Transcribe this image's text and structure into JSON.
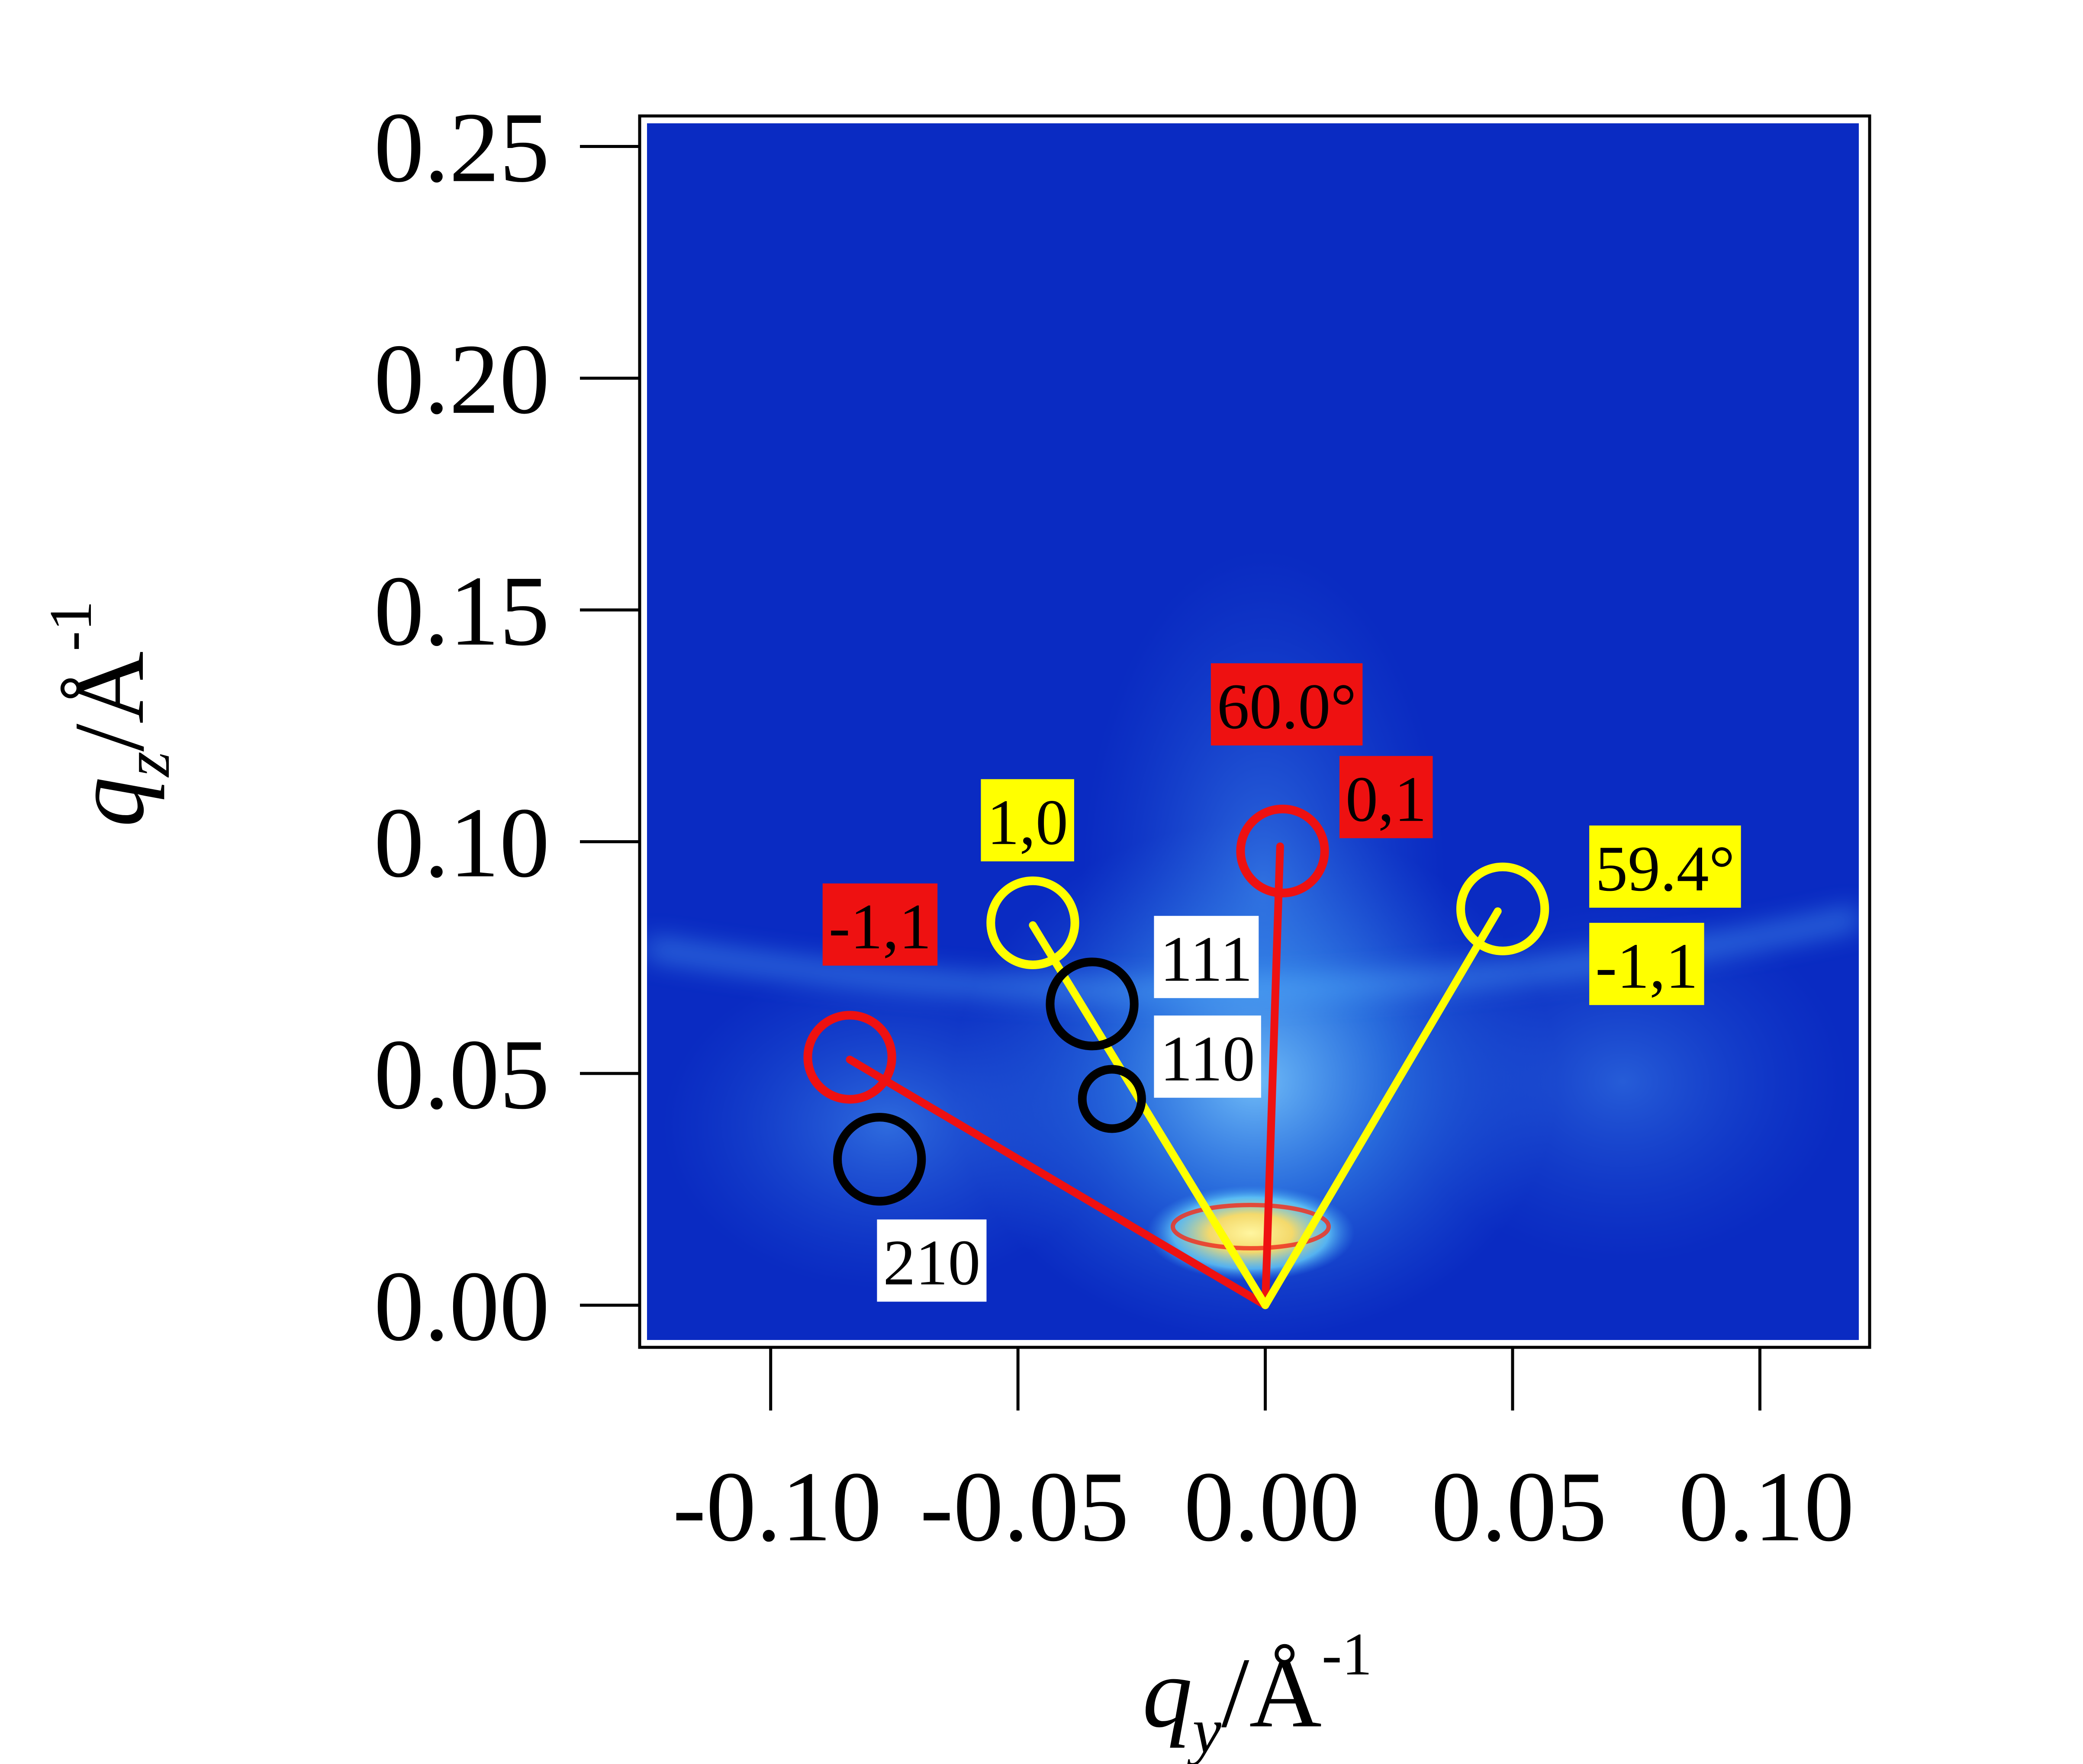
{
  "chart_data": {
    "type": "heatmap",
    "colors": {
      "background": "#0a2bc2",
      "glow": "#4fb2ff",
      "hot": "#ffe066",
      "red": "#ee1111",
      "yellow": "#ffff00",
      "black": "#000000",
      "white": "#ffffff"
    },
    "xaxis": {
      "label_main": "q",
      "label_sub": "y",
      "label_unit": "/Å",
      "label_exp": "-1",
      "range": [
        -0.125,
        0.12
      ],
      "ticks": [
        -0.1,
        -0.05,
        0.0,
        0.05,
        0.1
      ],
      "tick_labels": [
        "-0.10",
        "-0.05",
        "0.00",
        "0.05",
        "0.10"
      ]
    },
    "yaxis": {
      "label_main": "q",
      "label_sub": "z",
      "label_unit": "/Å",
      "label_exp": "-1",
      "range": [
        -0.0075,
        0.255
      ],
      "ticks": [
        0.0,
        0.05,
        0.1,
        0.15,
        0.2,
        0.25
      ],
      "tick_labels": [
        "0.00",
        "0.05",
        "0.10",
        "0.15",
        "0.20",
        "0.25"
      ]
    },
    "origin": [
      0.0,
      0.0
    ],
    "lines": [
      {
        "name": "red-line-0-1",
        "color": "red",
        "to": [
          0.003,
          0.099
        ]
      },
      {
        "name": "red-line-minus1-1",
        "color": "red",
        "to": [
          -0.084,
          0.053
        ]
      },
      {
        "name": "yellow-line-1-0",
        "color": "yellow",
        "to": [
          -0.047,
          0.082
        ]
      },
      {
        "name": "yellow-line-minus1-1",
        "color": "yellow",
        "to": [
          0.047,
          0.085
        ]
      }
    ],
    "circles": [
      {
        "name": "red-circle-0-1",
        "color": "red",
        "center": [
          0.0035,
          0.098
        ],
        "r": 0.0085
      },
      {
        "name": "red-circle-minus1-1",
        "color": "red",
        "center": [
          -0.084,
          0.0535
        ],
        "r": 0.0085
      },
      {
        "name": "yellow-circle-1-0",
        "color": "yellow",
        "center": [
          -0.047,
          0.0825
        ],
        "r": 0.0085
      },
      {
        "name": "yellow-circle-minus1-1",
        "color": "yellow",
        "center": [
          0.048,
          0.0855
        ],
        "r": 0.0085
      },
      {
        "name": "black-circle-111",
        "color": "black",
        "center": [
          -0.035,
          0.065
        ],
        "r": 0.0085
      },
      {
        "name": "black-circle-110",
        "color": "black",
        "center": [
          -0.031,
          0.0445
        ],
        "r": 0.006
      },
      {
        "name": "black-circle-210",
        "color": "black",
        "center": [
          -0.078,
          0.0315
        ],
        "r": 0.0085
      }
    ],
    "annotations": [
      {
        "name": "annotation-angle-60",
        "text": "60.0°",
        "bg": "red",
        "at": [
          -0.011,
          0.1245
        ]
      },
      {
        "name": "annotation-0-1",
        "text": "0,1",
        "bg": "red",
        "at": [
          0.015,
          0.1045
        ]
      },
      {
        "name": "annotation-1-0",
        "text": "1,0",
        "bg": "yellow",
        "at": [
          -0.0575,
          0.0995
        ]
      },
      {
        "name": "annotation-minus1-1-red",
        "text": "-1,1",
        "bg": "red",
        "at": [
          -0.0895,
          0.077
        ]
      },
      {
        "name": "annotation-111",
        "text": "111",
        "bg": "white",
        "at": [
          -0.0225,
          0.07
        ]
      },
      {
        "name": "annotation-110",
        "text": "110",
        "bg": "white",
        "at": [
          -0.0225,
          0.0485
        ]
      },
      {
        "name": "annotation-210",
        "text": "210",
        "bg": "white",
        "at": [
          -0.0785,
          0.0045
        ]
      },
      {
        "name": "annotation-angle-59-4",
        "text": "59.4°",
        "bg": "yellow",
        "at": [
          0.0655,
          0.0895
        ]
      },
      {
        "name": "annotation-minus1-1-yellow",
        "text": "-1,1",
        "bg": "yellow",
        "at": [
          0.0655,
          0.0685
        ]
      }
    ]
  }
}
